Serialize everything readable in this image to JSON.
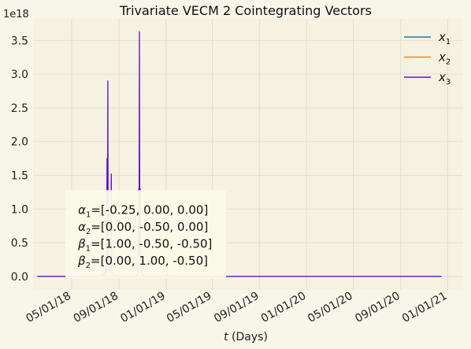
{
  "chart_data": {
    "type": "line",
    "title": "Trivariate VECM 2 Cointegrating Vectors",
    "xlabel_italic": "t",
    "xlabel_rest": " (Days)",
    "ylabel": "",
    "y_offset_label": "1e18",
    "x_range": [
      "2018-01-21",
      "2021-02-10"
    ],
    "ylim": [
      -0.2,
      3.82
    ],
    "y_unit": "1e18",
    "y_ticks": [
      {
        "value": 0.0,
        "label": "0.0"
      },
      {
        "value": 0.5,
        "label": "0.5"
      },
      {
        "value": 1.0,
        "label": "1.0"
      },
      {
        "value": 1.5,
        "label": "1.5"
      },
      {
        "value": 2.0,
        "label": "2.0"
      },
      {
        "value": 2.5,
        "label": "2.5"
      },
      {
        "value": 3.0,
        "label": "3.0"
      },
      {
        "value": 3.5,
        "label": "3.5"
      }
    ],
    "x_ticks": [
      {
        "date": "2018-05-01",
        "label": "05/01/18"
      },
      {
        "date": "2018-09-01",
        "label": "09/01/18"
      },
      {
        "date": "2019-01-01",
        "label": "01/01/19"
      },
      {
        "date": "2019-05-01",
        "label": "05/01/19"
      },
      {
        "date": "2019-09-01",
        "label": "09/01/19"
      },
      {
        "date": "2020-01-01",
        "label": "01/01/20"
      },
      {
        "date": "2020-05-01",
        "label": "05/01/20"
      },
      {
        "date": "2020-09-01",
        "label": "09/01/20"
      },
      {
        "date": "2021-01-01",
        "label": "01/01/21"
      }
    ],
    "grid": true,
    "legend_position": "top-right",
    "series": [
      {
        "name": "x",
        "subscript": "1",
        "color": "#1f77b4",
        "points": [
          [
            "2018-02-01",
            0.0
          ],
          [
            "2020-12-16",
            0.0
          ]
        ]
      },
      {
        "name": "x",
        "subscript": "2",
        "color": "#ff7f0e",
        "points": [
          [
            "2018-02-01",
            0.0
          ],
          [
            "2020-12-16",
            0.0
          ]
        ]
      },
      {
        "name": "x",
        "subscript": "3",
        "color": "#5a0fd6",
        "points": [
          [
            "2018-02-01",
            0.0
          ],
          [
            "2018-05-01",
            0.0
          ],
          [
            "2018-07-20",
            0.0
          ],
          [
            "2018-07-25",
            0.05
          ],
          [
            "2018-07-28",
            0.1
          ],
          [
            "2018-07-30",
            0.03
          ],
          [
            "2018-08-01",
            1.75
          ],
          [
            "2018-08-02",
            0.3
          ],
          [
            "2018-08-03",
            2.9
          ],
          [
            "2018-08-04",
            0.2
          ],
          [
            "2018-08-05",
            0.1
          ],
          [
            "2018-08-07",
            0.3
          ],
          [
            "2018-08-08",
            0.05
          ],
          [
            "2018-08-10",
            0.1
          ],
          [
            "2018-08-12",
            1.52
          ],
          [
            "2018-08-13",
            0.05
          ],
          [
            "2018-08-16",
            0.05
          ],
          [
            "2018-08-20",
            0.0
          ],
          [
            "2018-10-15",
            0.0
          ],
          [
            "2018-10-20",
            0.05
          ],
          [
            "2018-10-22",
            1.3
          ],
          [
            "2018-10-23",
            0.3
          ],
          [
            "2018-10-24",
            3.63
          ],
          [
            "2018-10-25",
            0.4
          ],
          [
            "2018-10-26",
            1.3
          ],
          [
            "2018-10-27",
            0.25
          ],
          [
            "2018-10-29",
            0.05
          ],
          [
            "2018-11-05",
            0.0
          ],
          [
            "2019-01-01",
            0.0
          ],
          [
            "2019-01-04",
            0.04
          ],
          [
            "2019-01-07",
            0.0
          ],
          [
            "2019-05-10",
            0.0
          ],
          [
            "2020-12-16",
            0.0
          ]
        ]
      }
    ],
    "annotation": [
      {
        "sym": "α",
        "sub": "1",
        "text": "=[-0.25, 0.00, 0.00]"
      },
      {
        "sym": "α",
        "sub": "2",
        "text": "=[0.00, -0.50, 0.00]"
      },
      {
        "sym": "β",
        "sub": "1",
        "text": "=[1.00, -0.50, -0.50]"
      },
      {
        "sym": "β",
        "sub": "2",
        "text": "=[0.00, 1.00, -0.50]"
      }
    ]
  }
}
